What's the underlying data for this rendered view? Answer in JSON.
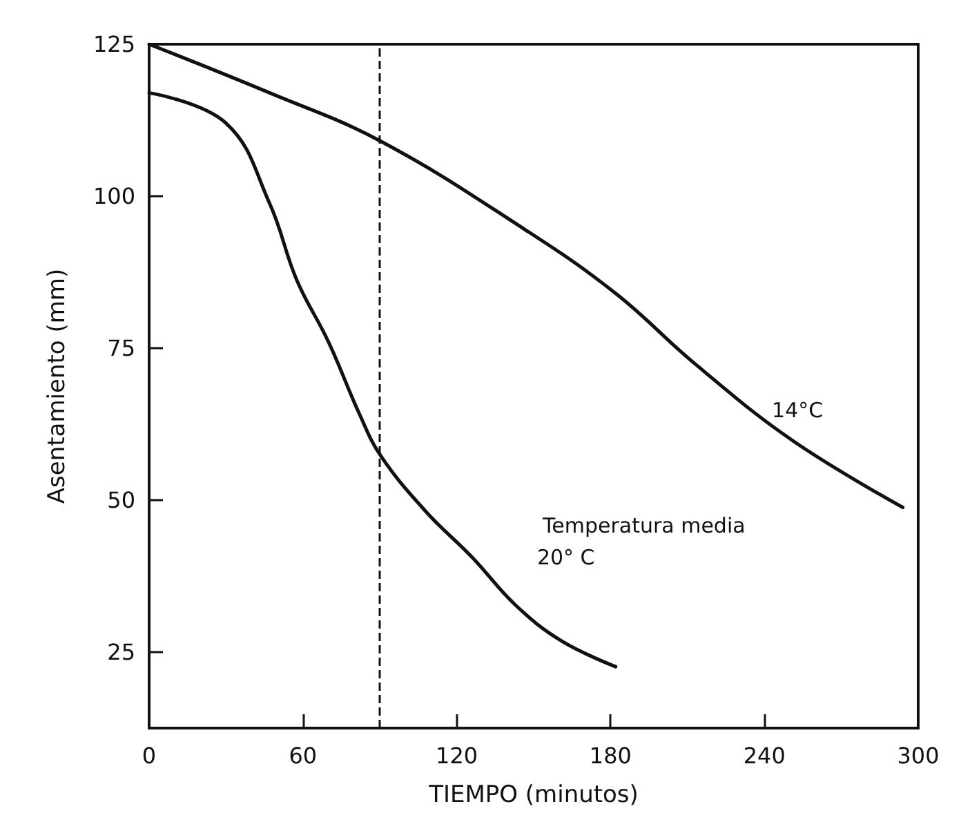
{
  "chart_data": {
    "type": "line",
    "xlabel": "TIEMPO (minutos)",
    "ylabel": "Asentamiento (mm)",
    "xlim": [
      0,
      300
    ],
    "xticks": [
      0,
      60,
      120,
      180,
      240,
      300
    ],
    "ylim": [
      12.5,
      125
    ],
    "yticks": [
      25,
      50,
      75,
      100,
      125
    ],
    "grid": false,
    "legend": false,
    "marker": "none",
    "line_style": "solid",
    "series": [
      {
        "name": "20° C",
        "color": "#111111",
        "x": [
          0,
          30,
          47,
          57.6,
          70,
          82,
          90.5,
          108,
          126,
          143,
          161,
          182
        ],
        "values": [
          117,
          112,
          98.8,
          86.2,
          76,
          64.2,
          57.2,
          48.1,
          40.6,
          32.7,
          26.8,
          22.6
        ]
      },
      {
        "name": "14°C",
        "color": "#111111",
        "x": [
          0,
          47,
          90.5,
          147,
          182,
          213,
          251,
          294
        ],
        "values": [
          125,
          117,
          109,
          94.4,
          84,
          72.4,
          59.8,
          48.8
        ]
      }
    ],
    "ref_lines": [
      {
        "axis": "x",
        "value": 90,
        "line_style": "dashed",
        "color": "#111111"
      }
    ],
    "annotations": [
      "Temperatura media"
    ]
  }
}
